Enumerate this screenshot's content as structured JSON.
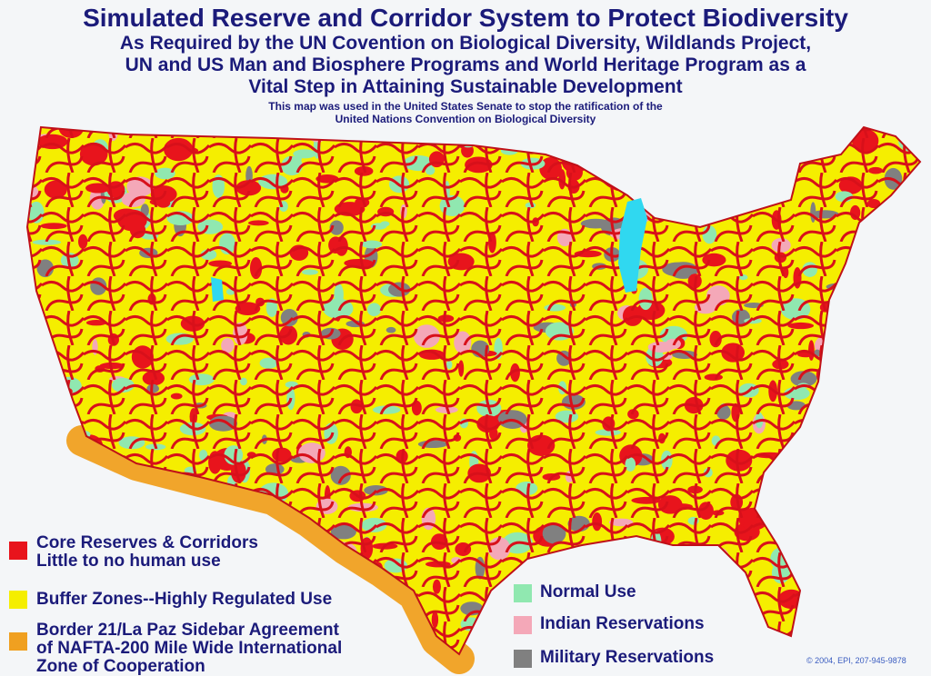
{
  "title": "Simulated Reserve and Corridor System to Protect Biodiversity",
  "subtitle_lines": [
    "As Required by the UN Covention on Biological Diversity, Wildlands Project,",
    "UN and US Man and Biosphere Programs and World Heritage Program as a",
    "Vital Step in Attaining Sustainable Development"
  ],
  "note_lines": [
    "This map was used in the United States Senate to stop the ratification of the",
    "United Nations Convention on Biological Diversity"
  ],
  "legend": [
    {
      "lines": [
        "Core Reserves & Corridors",
        "Little to no human use"
      ],
      "color": "#e8141c"
    },
    {
      "lines": [
        "Buffer Zones--Highly Regulated Use"
      ],
      "color": "#f5ee00"
    },
    {
      "lines": [
        "Border 21/La Paz Sidebar Agreement",
        "of NAFTA-200 Mile Wide International",
        "Zone of Cooperation"
      ],
      "color": "#f0a020"
    },
    {
      "lines": [
        "Normal Use"
      ],
      "color": "#90e8b0"
    },
    {
      "lines": [
        "Indian Reservations"
      ],
      "color": "#f4a8b8"
    },
    {
      "lines": [
        "Military Reservations"
      ],
      "color": "#808080"
    }
  ],
  "copyright": "© 2004, EPI, 207-945-9878",
  "colors": {
    "text": "#1b1b7a",
    "water": "#30d8f0"
  }
}
